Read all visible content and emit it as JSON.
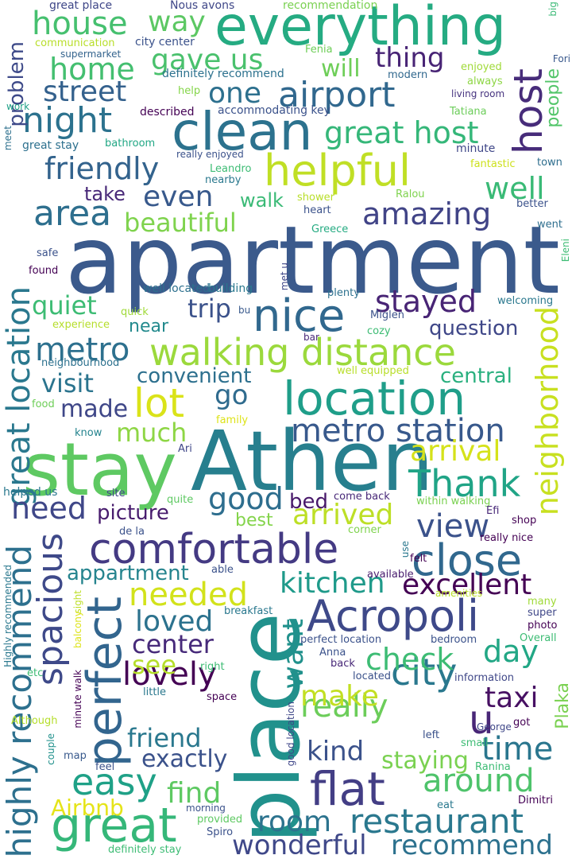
{
  "words": [
    {
      "text": "apartment",
      "color": "#3b5a8c"
    },
    {
      "text": "Athen",
      "color": "#277f8e"
    },
    {
      "text": "stay",
      "color": "#5ec962"
    },
    {
      "text": "place",
      "color": "#21918c"
    },
    {
      "text": "everything",
      "color": "#25ab82"
    },
    {
      "text": "clean",
      "color": "#2c728e"
    },
    {
      "text": "helpful",
      "color": "#c0df25"
    },
    {
      "text": "location",
      "color": "#1f9e89"
    },
    {
      "text": "walking distance",
      "color": "#9bd93c"
    },
    {
      "text": "comfortable",
      "color": "#443a83"
    },
    {
      "text": "Acropoli",
      "color": "#3e4989"
    },
    {
      "text": "great",
      "color": "#35b779"
    },
    {
      "text": "nice",
      "color": "#31688e"
    },
    {
      "text": "close",
      "color": "#31688e"
    },
    {
      "text": "perfect",
      "color": "#32658e"
    },
    {
      "text": "flat",
      "color": "#433e85"
    },
    {
      "text": "metro station",
      "color": "#38598c"
    },
    {
      "text": "Thank",
      "color": "#20a486"
    },
    {
      "text": "city",
      "color": "#2a788e"
    },
    {
      "text": "airport",
      "color": "#31688e"
    },
    {
      "text": "night",
      "color": "#2c728e"
    },
    {
      "text": "host",
      "color": "#472c7a"
    },
    {
      "text": "highly recommend",
      "color": "#2d708e"
    },
    {
      "text": "great location",
      "color": "#2a788e"
    },
    {
      "text": "neighborhood",
      "color": "#c8e020"
    },
    {
      "text": "lot",
      "color": "#dae319"
    },
    {
      "text": "u",
      "color": "#482677"
    },
    {
      "text": "spacious",
      "color": "#3e4989"
    },
    {
      "text": "restaurant",
      "color": "#2a788e"
    },
    {
      "text": "view",
      "color": "#3b528b"
    },
    {
      "text": "easy",
      "color": "#1fa187"
    },
    {
      "text": "great host",
      "color": "#35b779"
    },
    {
      "text": "amazing",
      "color": "#414487"
    },
    {
      "text": "friendly",
      "color": "#33638d"
    },
    {
      "text": "area",
      "color": "#2e6f8e"
    },
    {
      "text": "metro",
      "color": "#2d708e"
    },
    {
      "text": "house",
      "color": "#46c06f"
    },
    {
      "text": "gave us",
      "color": "#4ac16d"
    },
    {
      "text": "home",
      "color": "#44bf70"
    },
    {
      "text": "thing",
      "color": "#482475"
    },
    {
      "text": "one",
      "color": "#2d708e"
    },
    {
      "text": "street",
      "color": "#34618d"
    },
    {
      "text": "way",
      "color": "#5cc863"
    },
    {
      "text": "stayed",
      "color": "#482475"
    },
    {
      "text": "good",
      "color": "#2e6e8e"
    },
    {
      "text": "need",
      "color": "#3f4788"
    },
    {
      "text": "time",
      "color": "#2a768e"
    },
    {
      "text": "around",
      "color": "#4ec36b"
    },
    {
      "text": "room",
      "color": "#2c738e"
    },
    {
      "text": "wonderful",
      "color": "#3f4889"
    },
    {
      "text": "recommend",
      "color": "#2c718e"
    },
    {
      "text": "really",
      "color": "#6ccd5a"
    },
    {
      "text": "excellent",
      "color": "#440154"
    },
    {
      "text": "kitchen",
      "color": "#1f9a8a"
    },
    {
      "text": "needed",
      "color": "#d2e21b"
    },
    {
      "text": "check",
      "color": "#3dbc74"
    },
    {
      "text": "taxi",
      "color": "#471063"
    },
    {
      "text": "make",
      "color": "#c2df23"
    },
    {
      "text": "day",
      "color": "#22a785"
    },
    {
      "text": "arrival",
      "color": "#d5e21a"
    },
    {
      "text": "arrived",
      "color": "#bddf26"
    },
    {
      "text": "well",
      "color": "#3aba76"
    },
    {
      "text": "even",
      "color": "#38598c"
    },
    {
      "text": "lovely",
      "color": "#440154"
    },
    {
      "text": "loved",
      "color": "#2c728e"
    },
    {
      "text": "center",
      "color": "#472a7a"
    },
    {
      "text": "friend",
      "color": "#2a788e"
    },
    {
      "text": "find",
      "color": "#5ec962"
    },
    {
      "text": "kind",
      "color": "#3b528b"
    },
    {
      "text": "staying",
      "color": "#7ad151"
    },
    {
      "text": "beautiful",
      "color": "#7fd34e"
    },
    {
      "text": "quiet",
      "color": "#3dbc74"
    },
    {
      "text": "trip",
      "color": "#3b528b"
    },
    {
      "text": "convenient",
      "color": "#2d708e"
    },
    {
      "text": "visit",
      "color": "#2b748e"
    },
    {
      "text": "made",
      "color": "#3f4788"
    },
    {
      "text": "much",
      "color": "#8ed645"
    },
    {
      "text": "go",
      "color": "#2f6b8e"
    },
    {
      "text": "question",
      "color": "#3f4788"
    },
    {
      "text": "central",
      "color": "#2ab07f"
    },
    {
      "text": "picture",
      "color": "#481c6e"
    },
    {
      "text": "see",
      "color": "#b5de2b"
    },
    {
      "text": "want",
      "color": "#21918c"
    },
    {
      "text": "exactly",
      "color": "#3b528b"
    },
    {
      "text": "appartment",
      "color": "#25848e"
    },
    {
      "text": "Airbnb",
      "color": "#e5e419"
    },
    {
      "text": "Plaka",
      "color": "#7ad151"
    },
    {
      "text": "best",
      "color": "#84d44b"
    },
    {
      "text": "bed",
      "color": "#48186a"
    },
    {
      "text": "walk",
      "color": "#3aba76"
    },
    {
      "text": "take",
      "color": "#482878"
    },
    {
      "text": "will",
      "color": "#6ece58"
    },
    {
      "text": "problem",
      "color": "#3e4a89"
    },
    {
      "text": "near",
      "color": "#238a8d"
    },
    {
      "text": "people",
      "color": "#52c569"
    },
    {
      "text": "great place",
      "color": "#3f4788"
    },
    {
      "text": "Nous avons",
      "color": "#3f4788"
    },
    {
      "text": "recommendation",
      "color": "#7ad151"
    },
    {
      "text": "big",
      "color": "#3aba76"
    },
    {
      "text": "communication",
      "color": "#b8de29"
    },
    {
      "text": "city center",
      "color": "#3b528b"
    },
    {
      "text": "supermarket",
      "color": "#33638d"
    },
    {
      "text": "Fenia",
      "color": "#6ece58"
    },
    {
      "text": "Fori",
      "color": "#38588c"
    },
    {
      "text": "enjoyed",
      "color": "#a0da39"
    },
    {
      "text": "definitely recommend",
      "color": "#2c718e"
    },
    {
      "text": "modern",
      "color": "#31688e"
    },
    {
      "text": "always",
      "color": "#8ed645"
    },
    {
      "text": "help",
      "color": "#85d54a"
    },
    {
      "text": "living room",
      "color": "#46337f"
    },
    {
      "text": "work",
      "color": "#1fa187"
    },
    {
      "text": "described",
      "color": "#440154"
    },
    {
      "text": "accommodating key",
      "color": "#3b528b"
    },
    {
      "text": "Tatiana",
      "color": "#6ccd5a"
    },
    {
      "text": "meet",
      "color": "#2d708e"
    },
    {
      "text": "great stay",
      "color": "#2d708e"
    },
    {
      "text": "bathroom",
      "color": "#22a785"
    },
    {
      "text": "minute",
      "color": "#3f4788"
    },
    {
      "text": "really enjoyed",
      "color": "#3b528b"
    },
    {
      "text": "fantastic",
      "color": "#cde11d"
    },
    {
      "text": "town",
      "color": "#2e6e8e"
    },
    {
      "text": "Leandro",
      "color": "#3dbc74"
    },
    {
      "text": "nearby",
      "color": "#2a788e"
    },
    {
      "text": "shower",
      "color": "#b8de29"
    },
    {
      "text": "Ralou",
      "color": "#7fd34e"
    },
    {
      "text": "better",
      "color": "#3b528b"
    },
    {
      "text": "heart",
      "color": "#3b528b"
    },
    {
      "text": "went",
      "color": "#2e6e8e"
    },
    {
      "text": "Greece",
      "color": "#25ab82"
    },
    {
      "text": "Eleni",
      "color": "#3dbc74"
    },
    {
      "text": "safe",
      "color": "#3b528b"
    },
    {
      "text": "met u",
      "color": "#3f4788"
    },
    {
      "text": "found",
      "color": "#440154"
    },
    {
      "text": "well located",
      "color": "#2d708e"
    },
    {
      "text": "building",
      "color": "#2a788e"
    },
    {
      "text": "plenty",
      "color": "#2c718e"
    },
    {
      "text": "welcoming",
      "color": "#2a788e"
    },
    {
      "text": "quick",
      "color": "#a0da39"
    },
    {
      "text": "bu",
      "color": "#38598c"
    },
    {
      "text": "experience",
      "color": "#b5de2b"
    },
    {
      "text": "Miglen",
      "color": "#3b528b"
    },
    {
      "text": "cozy",
      "color": "#3dbc74"
    },
    {
      "text": "bar",
      "color": "#482878"
    },
    {
      "text": "neighbourhood",
      "color": "#2c718e"
    },
    {
      "text": "well equipped",
      "color": "#b8de29"
    },
    {
      "text": "food",
      "color": "#6ece58"
    },
    {
      "text": "family",
      "color": "#dde318"
    },
    {
      "text": "know",
      "color": "#25848e"
    },
    {
      "text": "Ari",
      "color": "#3f4788"
    },
    {
      "text": "helped us",
      "color": "#2a788e"
    },
    {
      "text": "site",
      "color": "#3f4788"
    },
    {
      "text": "quite",
      "color": "#5ec962"
    },
    {
      "text": "come back",
      "color": "#482878"
    },
    {
      "text": "within walking",
      "color": "#7ad151"
    },
    {
      "text": "Efi",
      "color": "#482878"
    },
    {
      "text": "de la",
      "color": "#3b528b"
    },
    {
      "text": "corner",
      "color": "#7fd34e"
    },
    {
      "text": "shop",
      "color": "#440154"
    },
    {
      "text": "use",
      "color": "#2a788e"
    },
    {
      "text": "really nice",
      "color": "#440154"
    },
    {
      "text": "felt",
      "color": "#440154"
    },
    {
      "text": "able",
      "color": "#3b528b"
    },
    {
      "text": "available",
      "color": "#481c6e"
    },
    {
      "text": "sight",
      "color": "#bddf26"
    },
    {
      "text": "amenities",
      "color": "#b8de29"
    },
    {
      "text": "many",
      "color": "#a0da39"
    },
    {
      "text": "breakfast",
      "color": "#2a788e"
    },
    {
      "text": "super",
      "color": "#3f4788"
    },
    {
      "text": "Highly recommended",
      "color": "#2a788e"
    },
    {
      "text": "balcony",
      "color": "#dde318"
    },
    {
      "text": "photo",
      "color": "#440154"
    },
    {
      "text": "perfect location",
      "color": "#3b528b"
    },
    {
      "text": "bedroom",
      "color": "#3b528b"
    },
    {
      "text": "Overall",
      "color": "#3dbc74"
    },
    {
      "text": "Anna",
      "color": "#3b528b"
    },
    {
      "text": "back",
      "color": "#482878"
    },
    {
      "text": "right",
      "color": "#3dbc74"
    },
    {
      "text": "located",
      "color": "#3b528b"
    },
    {
      "text": "information",
      "color": "#3f4788"
    },
    {
      "text": "Dimitri",
      "color": "#440154"
    },
    {
      "text": "etc",
      "color": "#3dbc74"
    },
    {
      "text": "minute walk",
      "color": "#440154"
    },
    {
      "text": "little",
      "color": "#2a788e"
    },
    {
      "text": "space",
      "color": "#440154"
    },
    {
      "text": "good location",
      "color": "#3f4788"
    },
    {
      "text": "Although",
      "color": "#b5de2b"
    },
    {
      "text": "couple",
      "color": "#21918c"
    },
    {
      "text": "map",
      "color": "#38598c"
    },
    {
      "text": "feel",
      "color": "#3b528b"
    },
    {
      "text": "left",
      "color": "#3b528b"
    },
    {
      "text": "small",
      "color": "#3dbc74"
    },
    {
      "text": "George",
      "color": "#3f4788"
    },
    {
      "text": "got",
      "color": "#440154"
    },
    {
      "text": "Ranina",
      "color": "#3dbc74"
    },
    {
      "text": "eat",
      "color": "#2a788e"
    },
    {
      "text": "morning",
      "color": "#3b528b"
    },
    {
      "text": "provided",
      "color": "#5ec962"
    },
    {
      "text": "Spiro",
      "color": "#3b528b"
    },
    {
      "text": "definitely stay",
      "color": "#3dbc74"
    }
  ]
}
